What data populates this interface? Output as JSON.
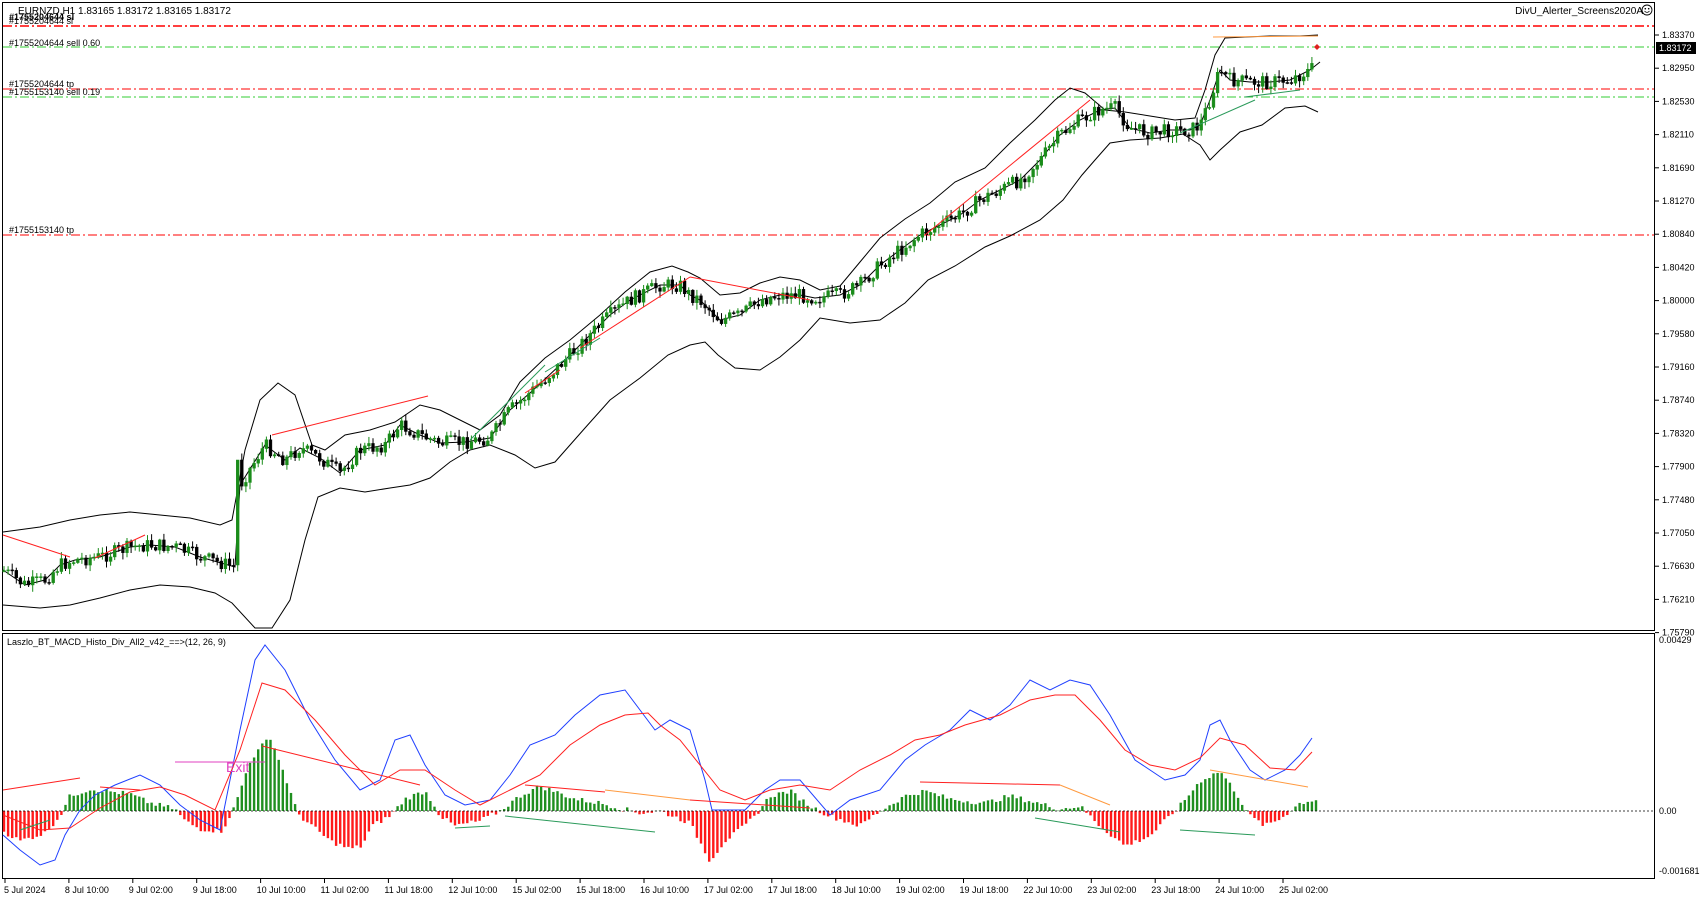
{
  "main_chart": {
    "symbol_header": "EURNZD,H1  1.83165 1.83172 1.83165 1.83172",
    "indicator_label": "DivU_Alerter_Screens2020A",
    "current_price_label": "1.83172",
    "order_labels": [
      "#1755204644 sl",
      "#1755204644 sell 0.60",
      "#1755204644 tp",
      "#1755153140 sell 0.19",
      "#1755153140 tp"
    ],
    "price_scale": [
      "1.83370",
      "1.82950",
      "1.82530",
      "1.82110",
      "1.81690",
      "1.81270",
      "1.80840",
      "1.80420",
      "1.80000",
      "1.79580",
      "1.79160",
      "1.78740",
      "1.78320",
      "1.77900",
      "1.77480",
      "1.77050",
      "1.76630",
      "1.76210",
      "1.75790"
    ]
  },
  "sub_chart": {
    "title": "Laszlo_BT_MACD_Histo_Div_All2_v42_==>(12, 26, 9)",
    "annotation": "Exit",
    "scale": [
      "0.00429",
      "0.00",
      "-0.001681"
    ]
  },
  "time_axis": [
    "5 Jul 2024",
    "8 Jul 10:00",
    "9 Jul 02:00",
    "9 Jul 18:00",
    "10 Jul 10:00",
    "11 Jul 02:00",
    "11 Jul 18:00",
    "12 Jul 10:00",
    "15 Jul 02:00",
    "15 Jul 18:00",
    "16 Jul 10:00",
    "17 Jul 02:00",
    "17 Jul 18:00",
    "18 Jul 10:00",
    "19 Jul 02:00",
    "19 Jul 18:00",
    "22 Jul 10:00",
    "23 Jul 02:00",
    "23 Jul 18:00",
    "24 Jul 10:00",
    "25 Jul 02:00"
  ],
  "colors": {
    "bull_candle": "#1a8c1a",
    "bear_candle": "#000000",
    "histo_up": "#1f8f1f",
    "histo_down": "#ff1a1a",
    "macd_line": "#1f3fff",
    "signal_line": "#ff2020",
    "sl_line": "#ff0000",
    "entry_line": "#33cc33",
    "div_bear": "#ff2020",
    "div_bull": "#2a9a5a",
    "exit_text": "#e040c0"
  }
}
